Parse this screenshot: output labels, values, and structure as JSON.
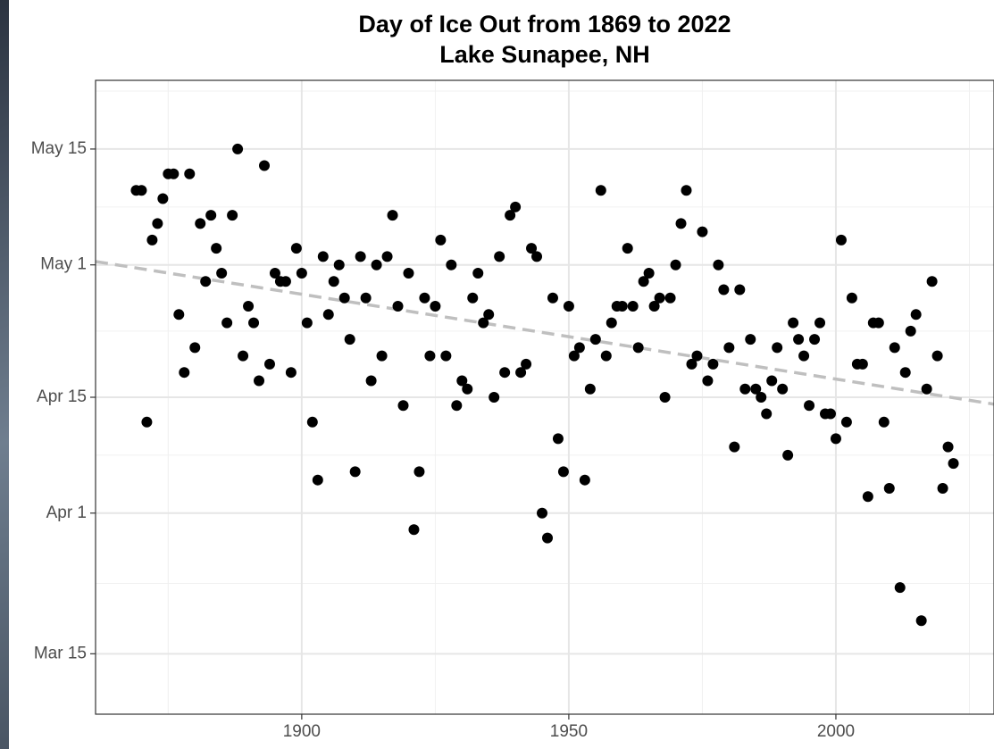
{
  "chart_data": {
    "type": "scatter",
    "title": "Day of Ice Out from 1869 to 2022",
    "subtitle": "Lake Sunapee, NH",
    "x": [
      1869,
      1870,
      1871,
      1872,
      1873,
      1874,
      1875,
      1876,
      1877,
      1878,
      1879,
      1880,
      1881,
      1882,
      1883,
      1884,
      1885,
      1886,
      1887,
      1888,
      1889,
      1890,
      1891,
      1892,
      1893,
      1894,
      1895,
      1896,
      1897,
      1898,
      1899,
      1900,
      1901,
      1902,
      1903,
      1904,
      1905,
      1906,
      1907,
      1908,
      1909,
      1910,
      1911,
      1912,
      1913,
      1914,
      1915,
      1916,
      1917,
      1918,
      1919,
      1920,
      1921,
      1922,
      1923,
      1924,
      1925,
      1926,
      1927,
      1928,
      1929,
      1930,
      1931,
      1932,
      1933,
      1934,
      1935,
      1936,
      1937,
      1938,
      1939,
      1940,
      1941,
      1942,
      1943,
      1944,
      1945,
      1946,
      1947,
      1948,
      1949,
      1950,
      1951,
      1952,
      1953,
      1954,
      1955,
      1956,
      1957,
      1958,
      1959,
      1960,
      1961,
      1962,
      1963,
      1964,
      1965,
      1966,
      1967,
      1968,
      1969,
      1970,
      1971,
      1972,
      1973,
      1974,
      1975,
      1976,
      1977,
      1978,
      1979,
      1980,
      1981,
      1982,
      1983,
      1984,
      1985,
      1986,
      1987,
      1988,
      1989,
      1990,
      1991,
      1992,
      1993,
      1994,
      1995,
      1996,
      1997,
      1998,
      1999,
      2000,
      2001,
      2002,
      2003,
      2004,
      2005,
      2006,
      2007,
      2008,
      2009,
      2010,
      2011,
      2012,
      2013,
      2014,
      2015,
      2016,
      2017,
      2018,
      2019,
      2020,
      2021,
      2022
    ],
    "values": [
      130,
      130,
      102,
      124,
      126,
      129,
      132,
      132,
      115,
      108,
      132,
      111,
      126,
      119,
      127,
      123,
      120,
      114,
      127,
      135,
      110,
      116,
      114,
      107,
      133,
      109,
      120,
      119,
      119,
      108,
      123,
      120,
      114,
      102,
      95,
      122,
      115,
      119,
      121,
      117,
      112,
      96,
      122,
      117,
      107,
      121,
      110,
      122,
      127,
      116,
      104,
      120,
      89,
      96,
      117,
      110,
      116,
      124,
      110,
      121,
      104,
      107,
      106,
      117,
      120,
      114,
      115,
      105,
      122,
      108,
      127,
      128,
      108,
      109,
      123,
      122,
      91,
      88,
      117,
      100,
      96,
      116,
      110,
      111,
      95,
      106,
      112,
      130,
      110,
      114,
      116,
      116,
      123,
      116,
      111,
      119,
      120,
      116,
      117,
      105,
      117,
      121,
      126,
      130,
      109,
      110,
      125,
      107,
      109,
      121,
      118,
      111,
      99,
      118,
      106,
      112,
      106,
      105,
      103,
      107,
      111,
      106,
      98,
      114,
      112,
      110,
      104,
      112,
      114,
      103,
      103,
      100,
      124,
      102,
      117,
      109,
      109,
      93,
      114,
      114,
      102,
      94,
      111,
      82,
      108,
      113,
      115,
      78,
      106,
      119,
      110,
      94,
      99,
      97
    ],
    "color": "#000000",
    "xlim": [
      1861.4,
      2029.6
    ],
    "ylim": [
      66.7,
      143.3
    ],
    "xticks": [
      1900,
      1950,
      2000
    ],
    "yticks": [
      {
        "value": 74,
        "label": "Mar 15"
      },
      {
        "value": 91,
        "label": "Apr 1"
      },
      {
        "value": 105,
        "label": "Apr 15"
      },
      {
        "value": 121,
        "label": "May 1"
      },
      {
        "value": 135,
        "label": "May 15"
      }
    ],
    "grid": true,
    "trend_line": {
      "method": "linear",
      "color": "#bfbfbf",
      "dashed": true
    }
  }
}
